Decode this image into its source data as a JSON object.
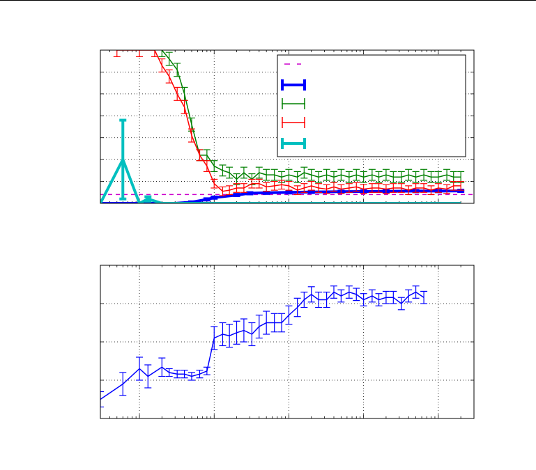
{
  "chart_data": [
    {
      "type": "line",
      "xscale": "log",
      "xlim": [
        3,
        300000
      ],
      "ylim": [
        0,
        7
      ],
      "grid": true,
      "legend_location": "upper-right",
      "legend_entries": 5,
      "series": [
        {
          "style": "dashed",
          "color": "#cc00cc",
          "x": [
            3,
            300000
          ],
          "y": [
            0.4,
            0.4
          ]
        },
        {
          "style": "thick-errorbar",
          "color": "#0000ff",
          "x": [
            3,
            5,
            10,
            20,
            30,
            50,
            80,
            100,
            200,
            300,
            500,
            1000,
            2000,
            5000,
            10000,
            20000,
            50000,
            100000,
            200000
          ],
          "y": [
            0.0,
            0.0,
            0.0,
            0.0,
            0.0,
            0.05,
            0.18,
            0.26,
            0.38,
            0.46,
            0.48,
            0.5,
            0.52,
            0.53,
            0.54,
            0.55,
            0.56,
            0.56,
            0.57
          ],
          "yerr": [
            0.0,
            0.0,
            0.0,
            0.0,
            0.0,
            0.02,
            0.03,
            0.03,
            0.03,
            0.03,
            0.03,
            0.03,
            0.03,
            0.03,
            0.03,
            0.03,
            0.03,
            0.03,
            0.03
          ]
        },
        {
          "style": "errorbar",
          "color": "#008000",
          "x": [
            20,
            25,
            32,
            40,
            50,
            64,
            80,
            100,
            130,
            160,
            200,
            250,
            320,
            400,
            500,
            640,
            800,
            1000,
            1300,
            1600,
            2000,
            2500,
            3200,
            4000,
            5000,
            6400,
            8000,
            10000,
            13000,
            16000,
            20000,
            25000,
            32000,
            40000,
            50000,
            64000,
            80000,
            100000,
            130000,
            160000,
            200000
          ],
          "y": [
            7.0,
            6.6,
            6.1,
            5.0,
            3.6,
            2.2,
            2.2,
            1.7,
            1.5,
            1.4,
            1.1,
            1.4,
            1.1,
            1.4,
            1.3,
            1.3,
            1.2,
            1.3,
            1.2,
            1.4,
            1.3,
            1.2,
            1.3,
            1.2,
            1.3,
            1.2,
            1.3,
            1.2,
            1.3,
            1.2,
            1.3,
            1.2,
            1.2,
            1.3,
            1.2,
            1.3,
            1.2,
            1.2,
            1.3,
            1.2,
            1.2
          ],
          "yerr": [
            0.3,
            0.3,
            0.3,
            0.3,
            0.3,
            0.25,
            0.25,
            0.25,
            0.25,
            0.25,
            0.25,
            0.25,
            0.25,
            0.25,
            0.25,
            0.25,
            0.25,
            0.25,
            0.25,
            0.25,
            0.25,
            0.25,
            0.25,
            0.25,
            0.25,
            0.25,
            0.25,
            0.25,
            0.25,
            0.25,
            0.25,
            0.25,
            0.25,
            0.25,
            0.25,
            0.25,
            0.25,
            0.25,
            0.25,
            0.25,
            0.25
          ]
        },
        {
          "style": "errorbar",
          "color": "#ff0000",
          "x": [
            5,
            10,
            16,
            20,
            25,
            32,
            40,
            50,
            64,
            80,
            100,
            130,
            160,
            200,
            250,
            320,
            400,
            500,
            640,
            800,
            1000,
            1300,
            1600,
            2000,
            2500,
            3200,
            4000,
            5000,
            6400,
            8000,
            10000,
            13000,
            16000,
            20000,
            25000,
            32000,
            40000,
            50000,
            64000,
            80000,
            100000,
            130000,
            160000,
            200000
          ],
          "y": [
            7.0,
            7.0,
            7.0,
            6.3,
            5.8,
            5.0,
            4.4,
            3.1,
            2.2,
            1.7,
            0.9,
            0.55,
            0.6,
            0.7,
            0.7,
            0.9,
            0.9,
            0.75,
            0.8,
            0.85,
            0.8,
            0.6,
            0.7,
            0.8,
            0.7,
            0.65,
            0.75,
            0.65,
            0.7,
            0.75,
            0.65,
            0.7,
            0.7,
            0.65,
            0.7,
            0.7,
            0.6,
            0.7,
            0.7,
            0.6,
            0.7,
            0.65,
            0.8,
            0.8
          ],
          "yerr": [
            0.3,
            0.3,
            0.3,
            0.3,
            0.3,
            0.3,
            0.3,
            0.3,
            0.25,
            0.25,
            0.2,
            0.2,
            0.2,
            0.2,
            0.2,
            0.2,
            0.2,
            0.2,
            0.2,
            0.2,
            0.2,
            0.2,
            0.2,
            0.2,
            0.2,
            0.2,
            0.2,
            0.2,
            0.2,
            0.2,
            0.2,
            0.2,
            0.2,
            0.2,
            0.2,
            0.2,
            0.2,
            0.2,
            0.2,
            0.2,
            0.2,
            0.2,
            0.2,
            0.2
          ]
        },
        {
          "style": "thick-errorbar",
          "color": "#00bfbf",
          "x": [
            3,
            6,
            10,
            13,
            20,
            30,
            50,
            100,
            200,
            500,
            1000,
            10000,
            100000,
            200000
          ],
          "y": [
            0.0,
            2.0,
            0.0,
            0.2,
            0.0,
            0.0,
            0.0,
            0.0,
            0.0,
            0.0,
            0.0,
            0.0,
            0.0,
            0.0
          ],
          "yerr": [
            0.0,
            1.8,
            0.0,
            0.1,
            0.0,
            0.0,
            0.0,
            0.0,
            0.0,
            0.0,
            0.0,
            0.0,
            0.0,
            0.0
          ]
        }
      ]
    },
    {
      "type": "line",
      "xscale": "log",
      "xlim": [
        3,
        300000
      ],
      "ylim": [
        0.0,
        2.0
      ],
      "grid": true,
      "series": [
        {
          "style": "errorbar",
          "color": "#0000ff",
          "x": [
            3,
            6,
            10,
            13,
            20,
            25,
            32,
            40,
            50,
            64,
            80,
            100,
            130,
            160,
            200,
            250,
            320,
            400,
            500,
            640,
            800,
            1000,
            1300,
            1600,
            2000,
            2500,
            3200,
            4000,
            5000,
            6400,
            8000,
            10000,
            13000,
            16000,
            20000,
            25000,
            32000,
            40000,
            50000,
            64000
          ],
          "y": [
            0.25,
            0.45,
            0.65,
            0.55,
            0.67,
            0.6,
            0.58,
            0.58,
            0.55,
            0.58,
            0.62,
            1.05,
            1.1,
            1.08,
            1.12,
            1.15,
            1.1,
            1.2,
            1.25,
            1.25,
            1.25,
            1.35,
            1.45,
            1.55,
            1.62,
            1.55,
            1.55,
            1.65,
            1.6,
            1.65,
            1.62,
            1.55,
            1.6,
            1.55,
            1.58,
            1.58,
            1.5,
            1.6,
            1.65,
            1.58
          ],
          "yerr": [
            0.1,
            0.15,
            0.15,
            0.15,
            0.12,
            0.05,
            0.05,
            0.05,
            0.05,
            0.05,
            0.05,
            0.15,
            0.15,
            0.15,
            0.15,
            0.15,
            0.15,
            0.15,
            0.15,
            0.12,
            0.12,
            0.12,
            0.12,
            0.1,
            0.1,
            0.1,
            0.1,
            0.08,
            0.08,
            0.08,
            0.08,
            0.08,
            0.08,
            0.08,
            0.08,
            0.08,
            0.08,
            0.08,
            0.08,
            0.08
          ]
        }
      ]
    }
  ]
}
